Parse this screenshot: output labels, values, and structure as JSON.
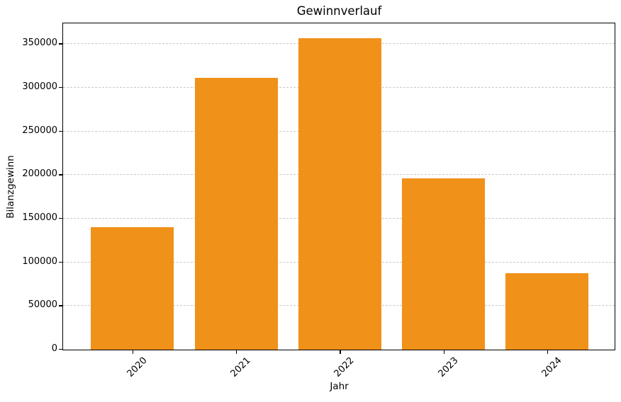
{
  "chart_data": {
    "type": "bar",
    "title": "Gewinnverlauf",
    "xlabel": "Jahr",
    "ylabel": "Bilanzgewinn",
    "categories": [
      "2020",
      "2021",
      "2022",
      "2023",
      "2024"
    ],
    "values": [
      140500,
      311500,
      357000,
      196000,
      87500
    ],
    "yticks": [
      0,
      50000,
      100000,
      150000,
      200000,
      250000,
      300000,
      350000
    ],
    "ylim": [
      0,
      373000
    ],
    "xlim": [
      2019.33,
      2024.65
    ],
    "bar_width_units": 0.8,
    "bar_color": "#f0911a",
    "grid": true,
    "grid_style": "dashed",
    "grid_color": "#c9c9c9",
    "x_tick_rotation": 45,
    "legend": "none",
    "background_color": "#ffffff",
    "spine_color": "#000000"
  }
}
